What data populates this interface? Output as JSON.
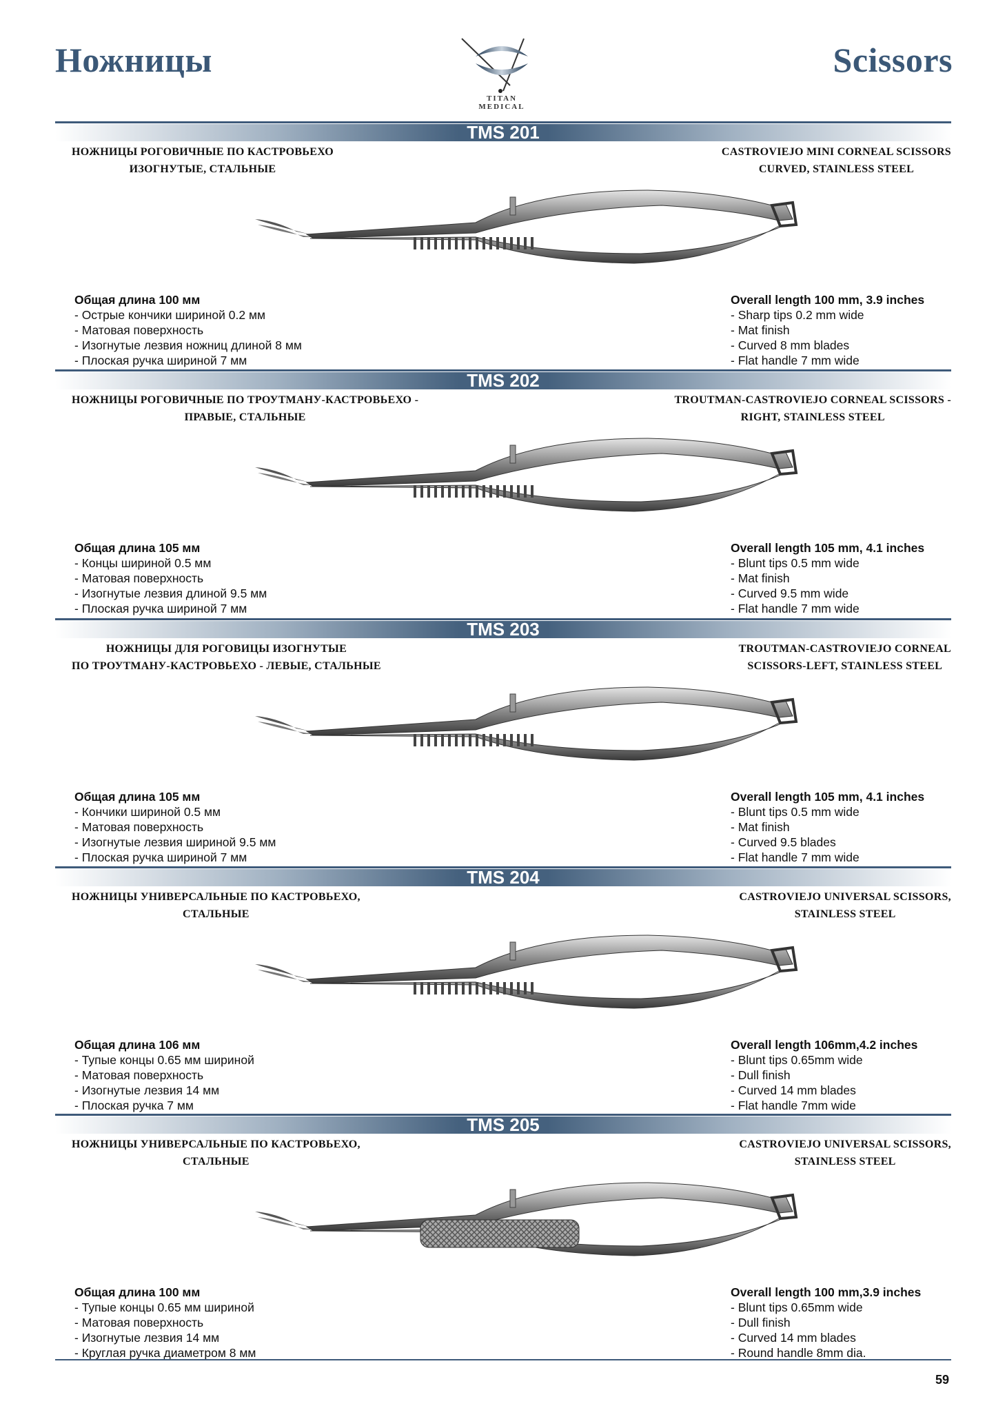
{
  "header": {
    "title_ru": "Ножницы",
    "title_en": "Scissors",
    "logo_text": "TITAN MEDICAL"
  },
  "colors": {
    "accent": "#3e5a7a",
    "title": "#3b5877"
  },
  "sections": [
    {
      "code": "TMS 201",
      "name_ru": [
        "НОЖНИЦЫ РОГОВИЧНЫЕ ПО КАСТРОВЬЕХО",
        "ИЗОГНУТЫЕ, СТАЛЬНЫЕ"
      ],
      "name_en": [
        "CASTROVIEJO MINI CORNEAL SCISSORS",
        "CURVED, STAINLESS STEEL"
      ],
      "specs_ru": [
        "Общая длина 100 мм",
        "- Острые кончики шириной 0.2 мм",
        "- Матовая поверхность",
        "- Изогнутые лезвия ножниц длиной 8 мм",
        "- Плоская ручка шириной 7 мм"
      ],
      "specs_en": [
        "Overall length 100 mm, 3.9 inches",
        "- Sharp tips 0.2 mm wide",
        "- Mat finish",
        "- Curved 8 mm blades",
        "- Flat handle 7 mm wide"
      ]
    },
    {
      "code": "TMS 202",
      "name_ru": [
        "НОЖНИЦЫ РОГОВИЧНЫЕ ПО ТРОУТМАНУ-КАСТРОВЬЕХО -",
        "ПРАВЫЕ, СТАЛЬНЫЕ"
      ],
      "name_en": [
        "TROUTMAN-CASTROVIEJO CORNEAL SCISSORS -",
        "RIGHT, STAINLESS STEEL"
      ],
      "specs_ru": [
        "Общая длина 105 мм",
        "- Концы шириной 0.5 мм",
        "- Матовая поверхность",
        "- Изогнутые лезвия длиной 9.5 мм",
        "- Плоская ручка шириной 7 мм"
      ],
      "specs_en": [
        "Overall length 105 mm, 4.1 inches",
        "- Blunt tips 0.5 mm wide",
        "- Mat finish",
        "- Curved 9.5 mm wide",
        "- Flat handle 7 mm wide"
      ]
    },
    {
      "code": "TMS 203",
      "name_ru": [
        "НОЖНИЦЫ ДЛЯ РОГОВИЦЫ ИЗОГНУТЫЕ",
        "ПО ТРОУТМАНУ-КАСТРОВЬЕХО - ЛЕВЫЕ, СТАЛЬНЫЕ"
      ],
      "name_en": [
        "TROUTMAN-CASTROVIEJO CORNEAL",
        "SCISSORS-LEFT, STAINLESS STEEL"
      ],
      "specs_ru": [
        "Общая длина 105 мм",
        "- Кончики шириной 0.5 мм",
        "- Матовая поверхность",
        "- Изогнутые лезвия шириной 9.5 мм",
        "- Плоская ручка шириной 7 мм"
      ],
      "specs_en": [
        "Overall length 105 mm, 4.1 inches",
        "- Blunt tips 0.5 mm wide",
        "- Mat finish",
        "- Curved 9.5 blades",
        "- Flat handle 7 mm wide"
      ]
    },
    {
      "code": "TMS 204",
      "name_ru": [
        "НОЖНИЦЫ УНИВЕРСАЛЬНЫЕ ПО КАСТРОВЬЕХО,",
        "СТАЛЬНЫЕ"
      ],
      "name_en": [
        "CASTROVIEJO UNIVERSAL SCISSORS,",
        "STAINLESS STEEL"
      ],
      "specs_ru": [
        "Общая длина 106 мм",
        "- Тупые концы 0.65 мм шириной",
        "- Матовая поверхность",
        "- Изогнутые лезвия 14 мм",
        "- Плоская ручка 7 мм"
      ],
      "specs_en": [
        "Overall length 106mm,4.2 inches",
        "- Blunt tips 0.65mm wide",
        "- Dull finish",
        "- Curved 14 mm blades",
        "- Flat handle 7mm wide"
      ]
    },
    {
      "code": "TMS 205",
      "name_ru": [
        "НОЖНИЦЫ УНИВЕРСАЛЬНЫЕ ПО КАСТРОВЬЕХО,",
        "СТАЛЬНЫЕ"
      ],
      "name_en": [
        "CASTROVIEJO UNIVERSAL SCISSORS,",
        "STAINLESS STEEL"
      ],
      "specs_ru": [
        "Общая длина 100 мм",
        "- Тупые концы 0.65 мм шириной",
        "- Матовая поверхность",
        "- Изогнутые лезвия 14 мм",
        "- Круглая ручка диаметром 8 мм"
      ],
      "specs_en": [
        "Overall length 100 mm,3.9 inches",
        "- Blunt tips 0.65mm wide",
        "- Dull finish",
        "- Curved 14 mm blades",
        "- Round handle 8mm dia."
      ]
    }
  ],
  "footer": {
    "page_number": "59"
  }
}
